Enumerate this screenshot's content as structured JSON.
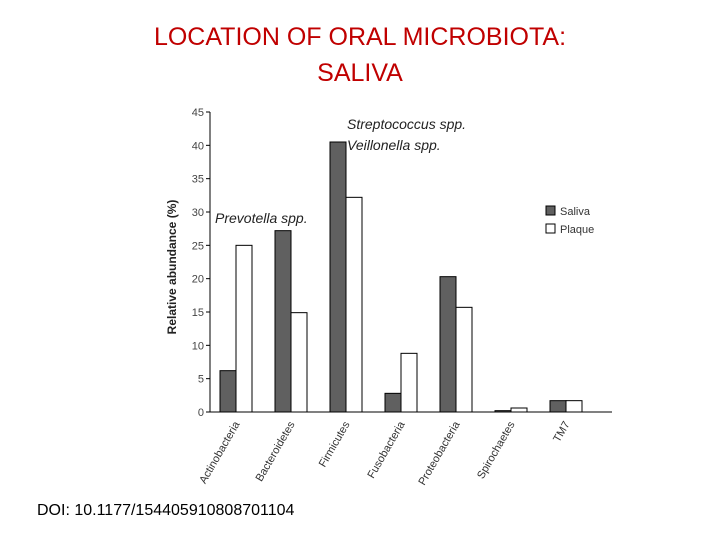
{
  "slide": {
    "title_line1": "LOCATION OF ORAL MICROBIOTA:",
    "title_line2": "SALIVA",
    "doi": "DOI: 10.1177/154405910808701104"
  },
  "annotations": {
    "strep": "Streptococcus spp.",
    "veil": "Veillonella spp.",
    "prev": "Prevotella spp."
  },
  "chart_data": {
    "type": "bar",
    "ylabel": "Relative abundance (%)",
    "ylim": [
      0,
      45
    ],
    "yticks": [
      0,
      5,
      10,
      15,
      20,
      25,
      30,
      35,
      40,
      45
    ],
    "categories": [
      "Actinobacteria",
      "Bacteroidetes",
      "Firmicutes",
      "Fusobacteria",
      "Proteobacteria",
      "Spirochaetes",
      "TM7"
    ],
    "series": [
      {
        "name": "Saliva",
        "color": "#606060",
        "values": [
          6.2,
          27.2,
          40.5,
          2.8,
          20.3,
          0.2,
          1.7
        ]
      },
      {
        "name": "Plaque",
        "color": "#ffffff",
        "values": [
          25,
          14.9,
          32.2,
          8.8,
          15.7,
          0.6,
          1.7
        ]
      }
    ],
    "legend": "right",
    "grid": false
  }
}
